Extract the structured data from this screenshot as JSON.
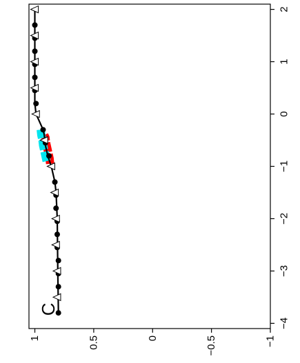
{
  "chart_data": {
    "type": "line",
    "panel_label": "C",
    "title": "",
    "xlabel": "",
    "ylabel": "",
    "x_axis": {
      "range": [
        -4.1,
        2.1
      ],
      "ticks": [
        -4,
        -3,
        -2,
        -1,
        0,
        1,
        2
      ],
      "tick_labels": [
        "−4",
        "−3",
        "−2",
        "−1",
        "0",
        "1",
        "2"
      ]
    },
    "y_axis": {
      "range": [
        -1,
        1.05
      ],
      "ticks": [
        1,
        0.5,
        0,
        -0.5,
        -1
      ],
      "tick_labels": [
        "1",
        "0.5",
        "0",
        "−0.5",
        "−1"
      ]
    },
    "grid": false,
    "orientation": "rotated-90-clockwise",
    "series": [
      {
        "style": "solid-black-line",
        "x": [
          -3.8,
          -3.0,
          -2.0,
          -1.5,
          -1.3,
          -1.0,
          -0.8,
          -0.6,
          -0.4,
          -0.3,
          -0.2,
          -0.1,
          0.0,
          0.1,
          0.2,
          0.5,
          1.0,
          1.5,
          2.0
        ],
        "y": [
          0.8,
          0.805,
          0.81,
          0.82,
          0.83,
          0.86,
          0.89,
          0.91,
          0.92,
          0.93,
          0.95,
          0.97,
          0.99,
          0.995,
          1.0,
          1.0,
          1.0,
          1.0,
          1.0
        ]
      },
      {
        "style": "filled-circles",
        "x": [
          -3.8,
          -3.3,
          -3.05,
          -2.8,
          -2.55,
          -2.3,
          -2.05,
          -1.8,
          -1.55,
          -1.3,
          -0.8,
          -0.55,
          -0.3,
          0.2,
          0.45,
          0.7,
          0.95,
          1.2,
          1.45,
          1.7
        ],
        "y": [
          0.8,
          0.8,
          0.8,
          0.8,
          0.81,
          0.81,
          0.81,
          0.82,
          0.82,
          0.83,
          0.88,
          0.91,
          0.93,
          0.99,
          1.0,
          1.0,
          1.0,
          1.0,
          1.0,
          1.0
        ]
      },
      {
        "style": "open-triangles",
        "x": [
          -3.5,
          -3.0,
          -2.5,
          -2.0,
          -1.5,
          -1.0,
          -0.5,
          0.0,
          0.5,
          1.0,
          1.5,
          2.0
        ],
        "y": [
          0.81,
          0.81,
          0.82,
          0.82,
          0.83,
          0.86,
          0.92,
          0.99,
          1.0,
          1.0,
          1.0,
          1.0
        ]
      },
      {
        "style": "red-dashed-band",
        "color": "#ff0000",
        "x": [
          -0.95,
          -0.85,
          -0.75,
          -0.65,
          -0.55,
          -0.45,
          -0.4
        ],
        "y": [
          0.87,
          0.875,
          0.885,
          0.895,
          0.905,
          0.91,
          0.92
        ]
      },
      {
        "style": "cyan-dashed-band",
        "color": "#00e5ee",
        "x": [
          -0.9,
          -0.8,
          -0.7,
          -0.6,
          -0.5,
          -0.4,
          -0.3
        ],
        "y": [
          0.9,
          0.91,
          0.92,
          0.93,
          0.935,
          0.945,
          0.95
        ]
      }
    ]
  }
}
